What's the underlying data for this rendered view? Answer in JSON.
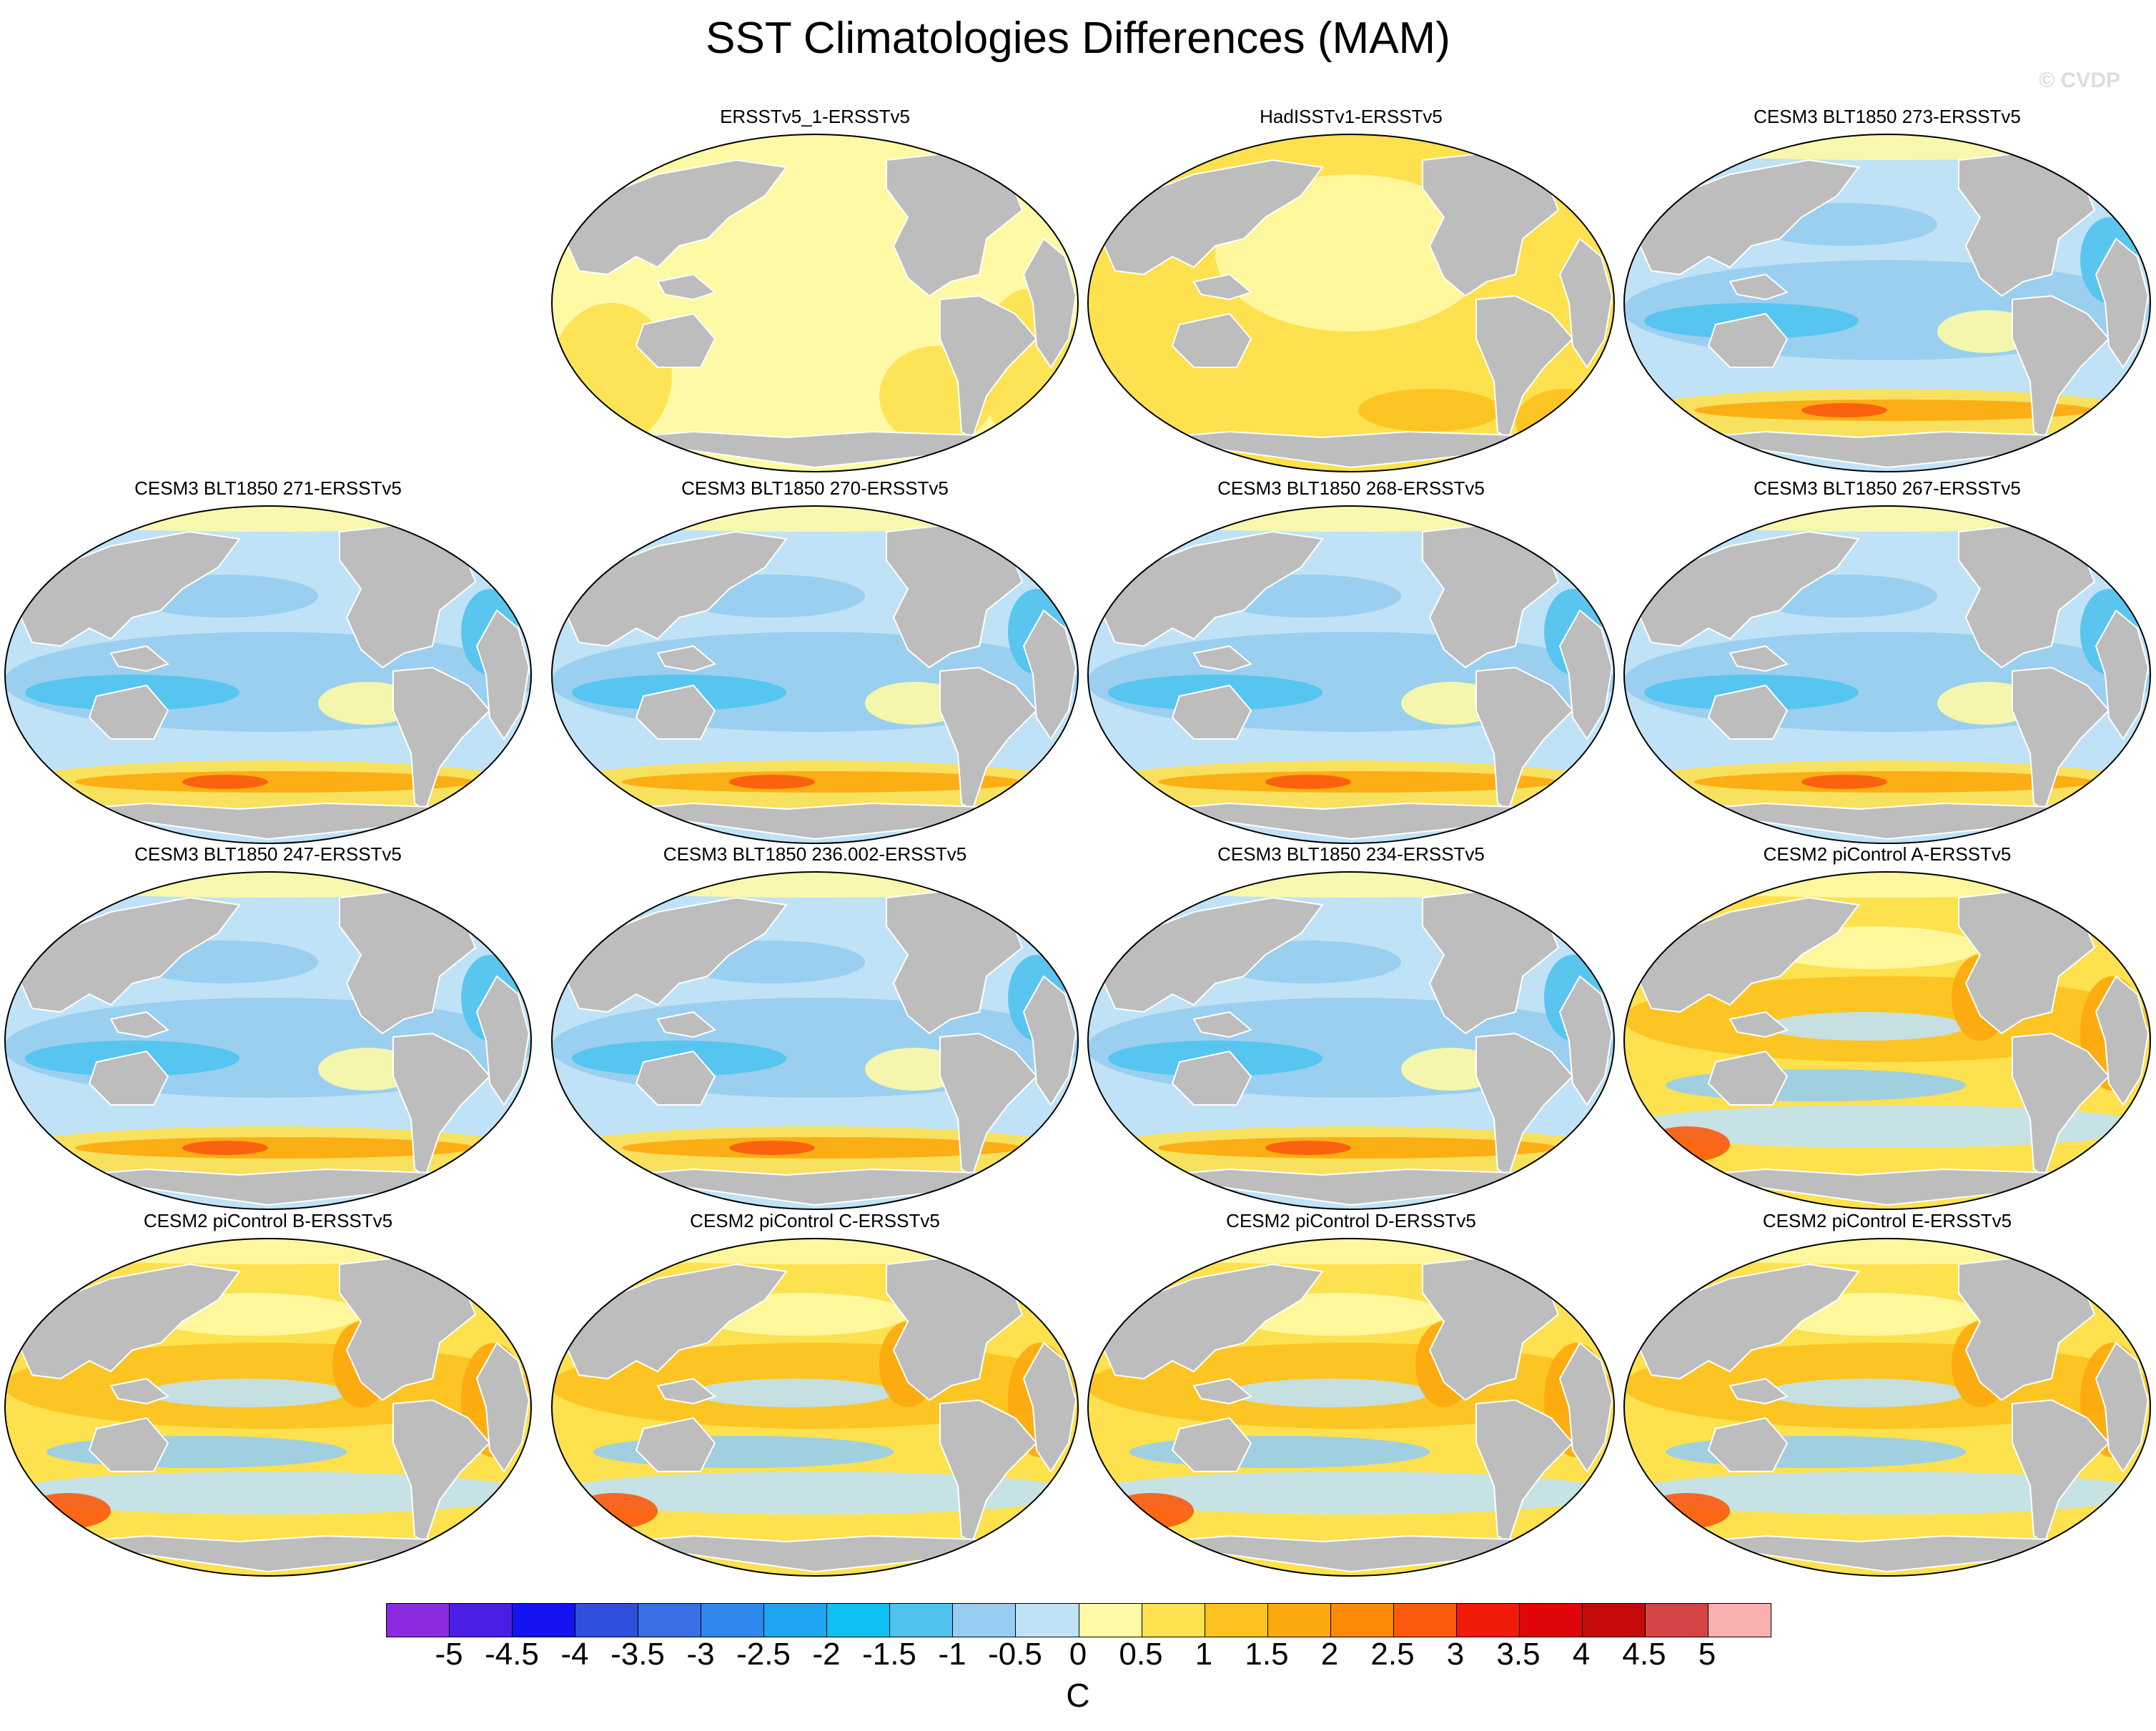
{
  "title": "SST Climatologies Differences (MAM)",
  "watermark": "© CVDP",
  "panels": [
    {
      "label": "ERSSTv5_1-ERSSTv5",
      "pattern": "near-zero-positive"
    },
    {
      "label": "HadISSTv1-ERSSTv5",
      "pattern": "small-positive"
    },
    {
      "label": "CESM3 BLT1850 273-ERSSTv5",
      "pattern": "cool-bias"
    },
    {
      "label": "CESM3 BLT1850 271-ERSSTv5",
      "pattern": "cool-bias"
    },
    {
      "label": "CESM3 BLT1850 270-ERSSTv5",
      "pattern": "cool-bias"
    },
    {
      "label": "CESM3 BLT1850 268-ERSSTv5",
      "pattern": "cool-bias"
    },
    {
      "label": "CESM3 BLT1850 267-ERSSTv5",
      "pattern": "cool-bias"
    },
    {
      "label": "CESM3 BLT1850 247-ERSSTv5",
      "pattern": "cool-bias"
    },
    {
      "label": "CESM3 BLT1850 236.002-ERSSTv5",
      "pattern": "cool-bias"
    },
    {
      "label": "CESM3 BLT1850 234-ERSSTv5",
      "pattern": "cool-bias"
    },
    {
      "label": "CESM2 piControl A-ERSSTv5",
      "pattern": "warm-bias"
    },
    {
      "label": "CESM2 piControl B-ERSSTv5",
      "pattern": "warm-bias"
    },
    {
      "label": "CESM2 piControl C-ERSSTv5",
      "pattern": "warm-bias"
    },
    {
      "label": "CESM2 piControl D-ERSSTv5",
      "pattern": "warm-bias"
    },
    {
      "label": "CESM2 piControl E-ERSSTv5",
      "pattern": "warm-bias"
    }
  ],
  "colorbar": {
    "units": "C",
    "ticks": [
      "-5",
      "-4.5",
      "-4",
      "-3.5",
      "-3",
      "-2.5",
      "-2",
      "-1.5",
      "-1",
      "-0.5",
      "0",
      "0.5",
      "1",
      "1.5",
      "2",
      "2.5",
      "3",
      "3.5",
      "4",
      "4.5",
      "5"
    ],
    "colors": [
      "#8a2be2",
      "#4b1ee6",
      "#1414f0",
      "#2f4fdc",
      "#3a6ee6",
      "#2e88ee",
      "#1ea5f2",
      "#0fc0f5",
      "#4fc3ee",
      "#96cdf0",
      "#c0e2f6",
      "#fef9a5",
      "#fde14e",
      "#fdc21f",
      "#fca90d",
      "#fc8a05",
      "#fb5a0c",
      "#f21a0a",
      "#e00508",
      "#c50a0a",
      "#d64545",
      "#fbb0b0"
    ]
  },
  "map_colors": {
    "land": "#bdbdbd",
    "coast": "#ffffff",
    "outline": "#000000",
    "sea_ice": "#fef9a5"
  }
}
